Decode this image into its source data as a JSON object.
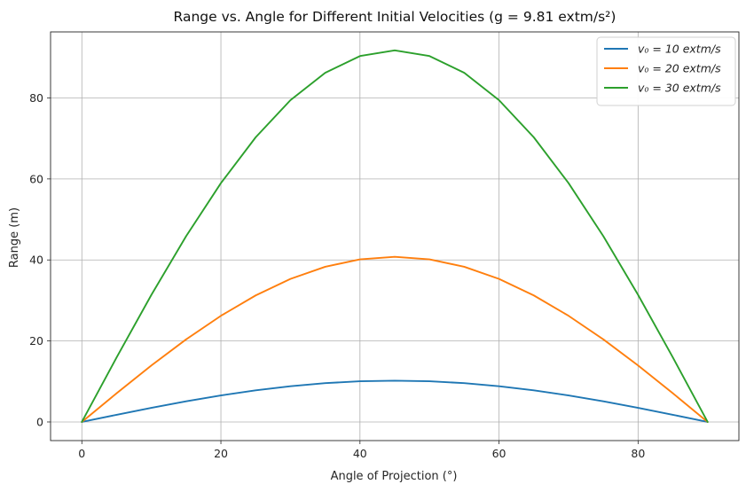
{
  "chart_data": {
    "type": "line",
    "title": "Range vs. Angle for Different Initial Velocities ($g = 9.81 \\text{m/s}^2$)",
    "title_display": "Range vs. Angle for Different Initial Velocities (g = 9.81 extm/s²)",
    "xlabel": "Angle of Projection (°)",
    "ylabel": "Range (m)",
    "x": [
      0,
      5,
      10,
      15,
      20,
      25,
      30,
      35,
      40,
      45,
      50,
      55,
      60,
      65,
      70,
      75,
      80,
      85,
      90
    ],
    "xlim": [
      -4.5,
      94.5
    ],
    "ylim": [
      -4.6,
      96.3
    ],
    "x_ticks": [
      0,
      20,
      40,
      60,
      80
    ],
    "y_ticks": [
      0,
      20,
      40,
      60,
      80
    ],
    "grid": true,
    "legend_position": "top-right",
    "series": [
      {
        "name": "v₀ = 10 extm/s",
        "color": "#1f77b4",
        "values": [
          0,
          1.77,
          3.49,
          5.1,
          6.55,
          7.81,
          8.83,
          9.58,
          10.04,
          10.19,
          10.04,
          9.58,
          8.83,
          7.81,
          6.55,
          5.1,
          3.49,
          1.77,
          0
        ]
      },
      {
        "name": "v₀ = 20 extm/s",
        "color": "#ff7f0e",
        "values": [
          0,
          7.08,
          13.95,
          20.39,
          26.21,
          31.24,
          35.31,
          38.31,
          40.15,
          40.77,
          40.15,
          38.31,
          35.31,
          31.24,
          26.21,
          20.39,
          13.95,
          7.08,
          0
        ]
      },
      {
        "name": "v₀ = 30 extm/s",
        "color": "#2ca02c",
        "values": [
          0,
          15.93,
          31.38,
          45.87,
          58.97,
          70.28,
          79.45,
          86.2,
          90.34,
          91.74,
          90.34,
          86.2,
          79.45,
          70.28,
          58.97,
          45.87,
          31.38,
          15.93,
          0
        ]
      }
    ]
  }
}
